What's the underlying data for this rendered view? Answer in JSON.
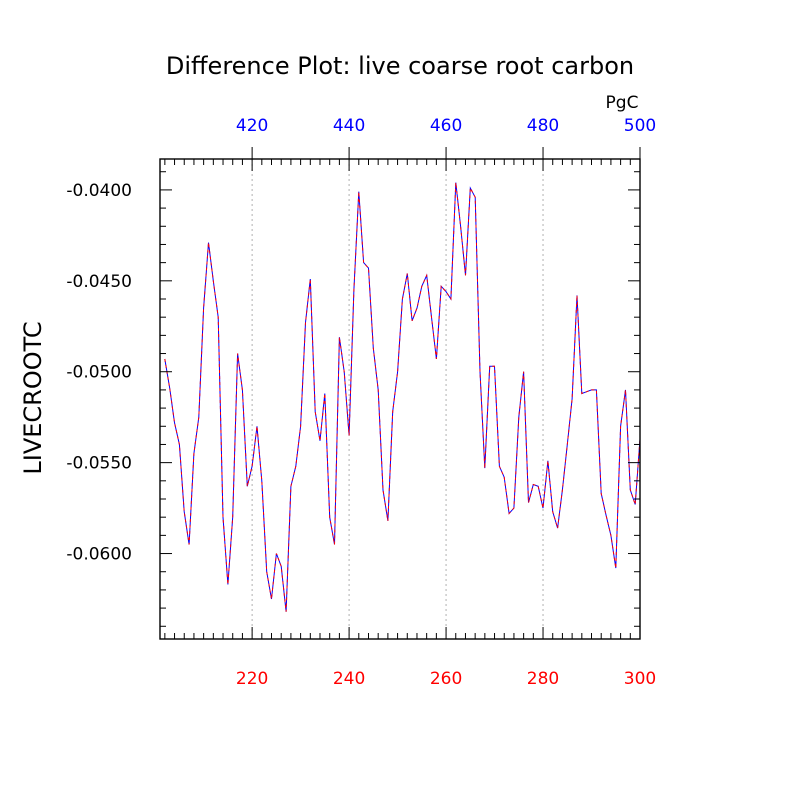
{
  "chart_data": {
    "type": "line",
    "title": "Difference Plot: live coarse root carbon",
    "units_label": "PgC",
    "ylabel": "LIVECROOTC",
    "xlabel": "",
    "xlim": [
      201,
      300
    ],
    "ylim": [
      -0.0647,
      -0.0383
    ],
    "y_ticks": [
      "-0.0400",
      "-0.0450",
      "-0.0500",
      "-0.0550",
      "-0.0600"
    ],
    "x_bottom_ticks": [
      "220",
      "240",
      "260",
      "280",
      "300"
    ],
    "x_top_ticks": [
      "420",
      "440",
      "460",
      "480",
      "500"
    ],
    "x_bottom_color": "#ff0000",
    "x_top_color": "#0000ff",
    "grid": "vertical dotted at major x ticks",
    "series": [
      {
        "line_colors": [
          "#0000ff",
          "#ff0000"
        ],
        "x": [
          202,
          203,
          204,
          205,
          206,
          207,
          208,
          209,
          210,
          211,
          212,
          213,
          214,
          215,
          216,
          217,
          218,
          219,
          220,
          221,
          222,
          223,
          224,
          225,
          226,
          227,
          228,
          229,
          230,
          231,
          232,
          233,
          234,
          235,
          236,
          237,
          238,
          239,
          240,
          241,
          242,
          243,
          244,
          245,
          246,
          247,
          248,
          249,
          250,
          251,
          252,
          253,
          254,
          255,
          256,
          257,
          258,
          259,
          260,
          261,
          262,
          263,
          264,
          265,
          266,
          267,
          268,
          269,
          270,
          271,
          272,
          273,
          274,
          275,
          276,
          277,
          278,
          279,
          280,
          281,
          282,
          283,
          284,
          285,
          286,
          287,
          288,
          289,
          290,
          291,
          292,
          293,
          294,
          295,
          296,
          297,
          298,
          299,
          300
        ],
        "y": [
          -0.0493,
          -0.0509,
          -0.0528,
          -0.054,
          -0.0577,
          -0.0595,
          -0.0545,
          -0.0525,
          -0.0465,
          -0.0429,
          -0.045,
          -0.047,
          -0.058,
          -0.0617,
          -0.058,
          -0.049,
          -0.051,
          -0.0563,
          -0.0552,
          -0.053,
          -0.056,
          -0.061,
          -0.0625,
          -0.06,
          -0.0607,
          -0.0632,
          -0.0563,
          -0.0552,
          -0.053,
          -0.0473,
          -0.0449,
          -0.0522,
          -0.0538,
          -0.0512,
          -0.058,
          -0.0595,
          -0.0481,
          -0.05,
          -0.0535,
          -0.0455,
          -0.0401,
          -0.044,
          -0.0443,
          -0.0487,
          -0.051,
          -0.0565,
          -0.0582,
          -0.0522,
          -0.05,
          -0.046,
          -0.0446,
          -0.0472,
          -0.0465,
          -0.0453,
          -0.0447,
          -0.047,
          -0.0493,
          -0.0453,
          -0.0456,
          -0.046,
          -0.0396,
          -0.042,
          -0.0447,
          -0.0399,
          -0.0404,
          -0.05,
          -0.0553,
          -0.0497,
          -0.0497,
          -0.0552,
          -0.0558,
          -0.0578,
          -0.0575,
          -0.0525,
          -0.05,
          -0.0572,
          -0.0562,
          -0.0563,
          -0.0575,
          -0.0549,
          -0.0577,
          -0.0586,
          -0.0565,
          -0.054,
          -0.0515,
          -0.0458,
          -0.0512,
          -0.0511,
          -0.051,
          -0.051,
          -0.0567,
          -0.0579,
          -0.059,
          -0.0608,
          -0.053,
          -0.051,
          -0.0565,
          -0.0573,
          -0.0537
        ]
      }
    ]
  }
}
